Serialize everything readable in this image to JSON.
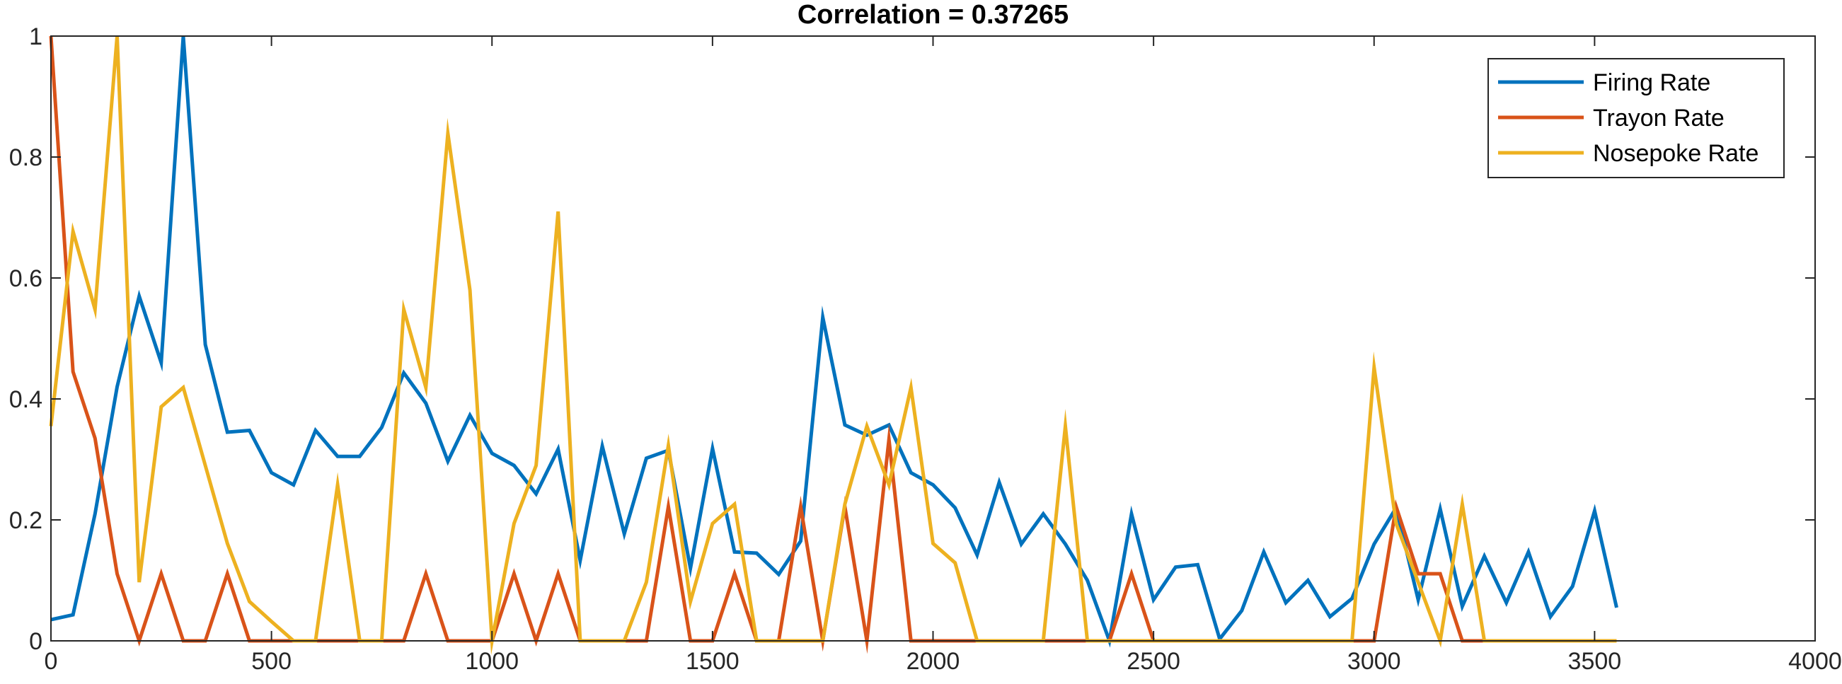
{
  "chart_data": {
    "type": "line",
    "title": "Correlation = 0.37265",
    "xlabel": "",
    "ylabel": "",
    "xlim": [
      0,
      4000
    ],
    "ylim": [
      0,
      1
    ],
    "xticks": [
      0,
      500,
      1000,
      1500,
      2000,
      2500,
      3000,
      3500,
      4000
    ],
    "yticks": [
      0,
      0.2,
      0.4,
      0.6,
      0.8,
      1
    ],
    "grid": false,
    "legend_location": "top-right",
    "x": [
      0,
      50,
      100,
      150,
      200,
      250,
      300,
      350,
      400,
      450,
      500,
      550,
      600,
      650,
      700,
      750,
      800,
      850,
      900,
      950,
      1000,
      1050,
      1100,
      1150,
      1200,
      1250,
      1300,
      1350,
      1400,
      1450,
      1500,
      1550,
      1600,
      1650,
      1700,
      1750,
      1800,
      1850,
      1900,
      1950,
      2000,
      2050,
      2100,
      2150,
      2200,
      2250,
      2300,
      2350,
      2400,
      2450,
      2500,
      2550,
      2600,
      2650,
      2700,
      2750,
      2800,
      2850,
      2900,
      2950,
      3000,
      3050,
      3100,
      3150,
      3200,
      3250,
      3300,
      3350,
      3400,
      3450,
      3500,
      3550
    ],
    "series": [
      {
        "name": "Firing Rate",
        "color": "#0072BD",
        "values": [
          0.035,
          0.043,
          0.21,
          0.42,
          0.57,
          0.46,
          1.0,
          0.49,
          0.345,
          0.348,
          0.278,
          0.258,
          0.348,
          0.305,
          0.305,
          0.353,
          0.443,
          0.393,
          0.297,
          0.373,
          0.31,
          0.29,
          0.243,
          0.317,
          0.133,
          0.322,
          0.177,
          0.302,
          0.315,
          0.12,
          0.318,
          0.147,
          0.145,
          0.11,
          0.165,
          0.535,
          0.357,
          0.34,
          0.357,
          0.278,
          0.258,
          0.22,
          0.142,
          0.262,
          0.16,
          0.21,
          0.16,
          0.1,
          0.0,
          0.21,
          0.068,
          0.122,
          0.126,
          0.003,
          0.05,
          0.147,
          0.063,
          0.1,
          0.04,
          0.07,
          0.16,
          0.22,
          0.068,
          0.218,
          0.057,
          0.14,
          0.063,
          0.147,
          0.04,
          0.09,
          0.215,
          0.055
        ]
      },
      {
        "name": "Trayon Rate",
        "color": "#D95319",
        "values": [
          1.0,
          0.445,
          0.335,
          0.111,
          0.0,
          0.111,
          0.0,
          0.0,
          0.111,
          0.0,
          0.0,
          0.0,
          0.0,
          0.0,
          0.0,
          0.0,
          0.0,
          0.111,
          0.0,
          0.0,
          0.0,
          0.111,
          0.0,
          0.111,
          0.0,
          0.0,
          0.0,
          0.0,
          0.222,
          0.0,
          0.0,
          0.111,
          0.0,
          0.0,
          0.222,
          0.0,
          0.222,
          0.0,
          0.333,
          0.0,
          0.0,
          0.0,
          0.0,
          0.0,
          0.0,
          0.0,
          0.0,
          0.0,
          0.0,
          0.111,
          0.0,
          0.0,
          0.0,
          0.0,
          0.0,
          0.0,
          0.0,
          0.0,
          0.0,
          0.0,
          0.0,
          0.222,
          0.111,
          0.111,
          0.0,
          0.0,
          0.0,
          0.0,
          0.0,
          0.0,
          0.0,
          0.0
        ]
      },
      {
        "name": "Nosepoke Rate",
        "color": "#EDB120",
        "values": [
          0.355,
          0.677,
          0.548,
          1.0,
          0.097,
          0.387,
          0.419,
          0.29,
          0.161,
          0.065,
          0.032,
          0.0,
          0.0,
          0.258,
          0.0,
          0.0,
          0.548,
          0.419,
          0.839,
          0.58,
          0.0,
          0.194,
          0.29,
          0.71,
          0.0,
          0.0,
          0.0,
          0.097,
          0.323,
          0.065,
          0.194,
          0.226,
          0.0,
          0.0,
          0.0,
          0.0,
          0.226,
          0.355,
          0.258,
          0.419,
          0.161,
          0.129,
          0.0,
          0.0,
          0.0,
          0.0,
          0.355,
          0.0,
          0.0,
          0.0,
          0.0,
          0.0,
          0.0,
          0.0,
          0.0,
          0.0,
          0.0,
          0.0,
          0.0,
          0.0,
          0.452,
          0.194,
          0.097,
          0.0,
          0.226,
          0.0,
          0.0,
          0.0,
          0.0,
          0.0,
          0.0,
          0.0
        ]
      }
    ]
  }
}
